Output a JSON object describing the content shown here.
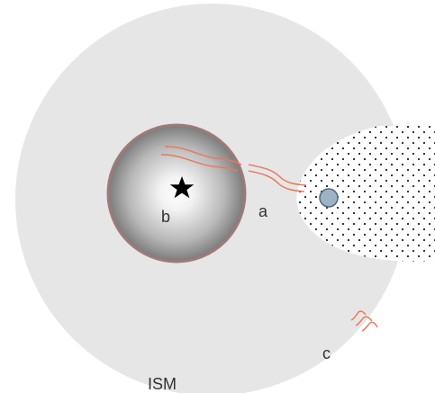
{
  "labels": {
    "region_a": "a",
    "region_b": "b",
    "region_c": "c",
    "medium": "ISM"
  },
  "colors": {
    "ism_fill": "#e6e6e6",
    "bubble_shell": "#9c7b78",
    "bubble_center": "#ffffff",
    "bubble_edge": "#7a7a7a",
    "wave_lines": "#e8795f",
    "dots": "#222222",
    "cloud_fill": "#ffffff",
    "core_fill": "#9db3c4",
    "core_stroke": "#4a6a85",
    "star_fill": "#000000",
    "label_text": "#333333"
  },
  "icons": {
    "central_source": "star-icon"
  }
}
